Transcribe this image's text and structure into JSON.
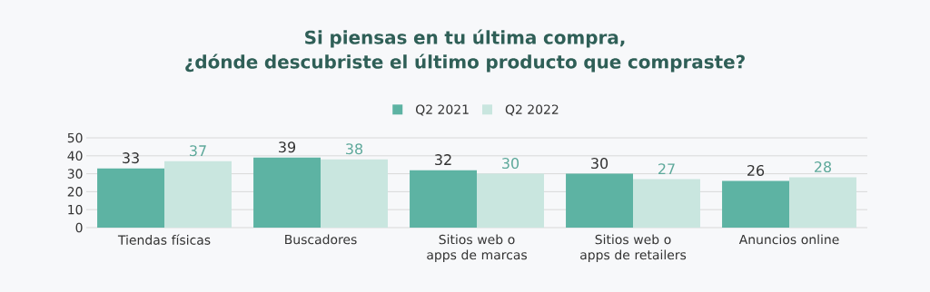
{
  "chart_data": {
    "type": "bar",
    "title": "Si piensas en tu última compra,\n¿dónde descubriste el último producto que compraste?",
    "categories": [
      "Tiendas físicas",
      "Buscadores",
      "Sitios web o apps de marcas",
      "Sitios web o apps de retailers",
      "Anuncios online"
    ],
    "series": [
      {
        "name": "Q2 2021",
        "color": "#5db3a3",
        "values": [
          33,
          39,
          32,
          30,
          26
        ]
      },
      {
        "name": "Q2 2022",
        "color": "#c9e6df",
        "values": [
          37,
          38,
          30,
          27,
          28
        ]
      }
    ],
    "ylim": [
      0,
      50
    ],
    "yticks": [
      0,
      10,
      20,
      30,
      40,
      50
    ],
    "grid": "y",
    "legend": "top",
    "data_labels": true
  }
}
